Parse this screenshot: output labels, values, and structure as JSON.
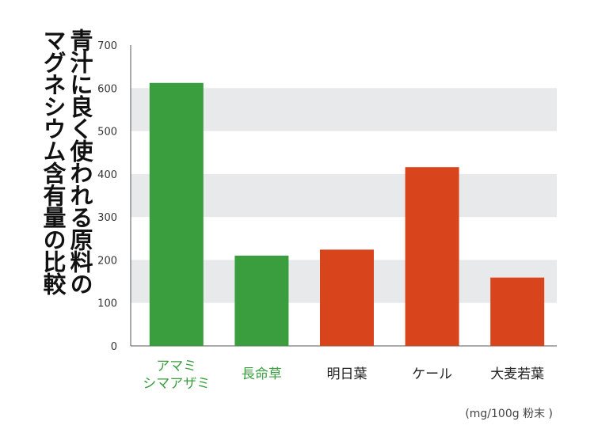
{
  "chart_data": {
    "type": "bar",
    "title": "青汁に良く使われる原料の\nマグネシウム含有量の比較",
    "categories": [
      "アマミ\nシマアザミ",
      "長命草",
      "明日葉",
      "ケール",
      "大麦若葉"
    ],
    "values": [
      612,
      210,
      224,
      416,
      159
    ],
    "colors": [
      "#3a9e3f",
      "#3a9e3f",
      "#d8441c",
      "#d8441c",
      "#d8441c"
    ],
    "label_colors": [
      "#3a9e3f",
      "#3a9e3f",
      "#222222",
      "#222222",
      "#222222"
    ],
    "ylim": [
      0,
      700
    ],
    "yticks": [
      0,
      100,
      200,
      300,
      400,
      500,
      600,
      700
    ],
    "band_color": "#e8e9ea",
    "unit": "(mg/100g 粉末 )",
    "xlabel": "",
    "ylabel": ""
  }
}
